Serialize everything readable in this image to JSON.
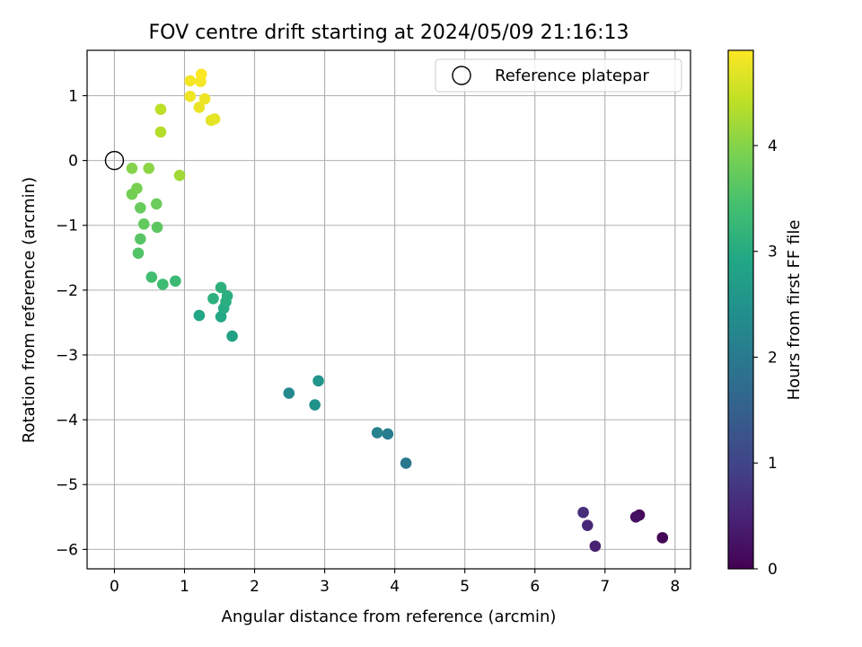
{
  "chart_data": {
    "type": "scatter",
    "title": "FOV centre drift starting at 2024/05/09 21:16:13",
    "xlabel": "Angular distance from reference (arcmin)",
    "ylabel": "Rotation from reference (arcmin)",
    "xlim": [
      -0.39,
      8.22
    ],
    "ylim": [
      -6.3,
      1.7
    ],
    "xticks": [
      0,
      1,
      2,
      3,
      4,
      5,
      6,
      7,
      8
    ],
    "xtick_labels": [
      "0",
      "1",
      "2",
      "3",
      "4",
      "5",
      "6",
      "7",
      "8"
    ],
    "yticks": [
      1,
      0,
      -1,
      -2,
      -3,
      -4,
      -5,
      -6
    ],
    "ytick_labels": [
      "1",
      "0",
      "−1",
      "−2",
      "−3",
      "−4",
      "−5",
      "−6"
    ],
    "grid": true,
    "legend": {
      "position": "top-right",
      "label": "Reference platepar",
      "marker": "open-circle"
    },
    "reference": {
      "x": 0,
      "y": 0
    },
    "colorbar": {
      "label": "Hours from first FF file",
      "colormap": "viridis",
      "range": [
        0,
        4.9
      ],
      "ticks": [
        0,
        1,
        2,
        3,
        4
      ],
      "tick_labels": [
        "0",
        "1",
        "2",
        "3",
        "4"
      ]
    },
    "points": [
      {
        "x": 7.82,
        "y": -5.82,
        "c": 0.05
      },
      {
        "x": 7.49,
        "y": -5.47,
        "c": 0.12
      },
      {
        "x": 7.44,
        "y": -5.5,
        "c": 0.22
      },
      {
        "x": 6.86,
        "y": -5.95,
        "c": 0.45
      },
      {
        "x": 6.75,
        "y": -5.63,
        "c": 0.55
      },
      {
        "x": 6.69,
        "y": -5.43,
        "c": 0.65
      },
      {
        "x": 4.16,
        "y": -4.67,
        "c": 1.95
      },
      {
        "x": 3.9,
        "y": -4.22,
        "c": 2.05
      },
      {
        "x": 3.75,
        "y": -4.2,
        "c": 2.15
      },
      {
        "x": 2.49,
        "y": -3.59,
        "c": 2.3
      },
      {
        "x": 2.86,
        "y": -3.77,
        "c": 2.45
      },
      {
        "x": 2.91,
        "y": -3.4,
        "c": 2.55
      },
      {
        "x": 1.68,
        "y": -2.71,
        "c": 2.8
      },
      {
        "x": 1.21,
        "y": -2.39,
        "c": 2.9
      },
      {
        "x": 1.52,
        "y": -2.41,
        "c": 2.95
      },
      {
        "x": 1.56,
        "y": -2.28,
        "c": 3.0
      },
      {
        "x": 1.59,
        "y": -2.18,
        "c": 3.05
      },
      {
        "x": 1.61,
        "y": -2.09,
        "c": 3.08
      },
      {
        "x": 1.41,
        "y": -2.13,
        "c": 3.1
      },
      {
        "x": 1.52,
        "y": -1.96,
        "c": 3.12
      },
      {
        "x": 0.87,
        "y": -1.86,
        "c": 3.3
      },
      {
        "x": 0.69,
        "y": -1.91,
        "c": 3.35
      },
      {
        "x": 0.53,
        "y": -1.8,
        "c": 3.4
      },
      {
        "x": 0.34,
        "y": -1.43,
        "c": 3.55
      },
      {
        "x": 0.37,
        "y": -1.21,
        "c": 3.6
      },
      {
        "x": 0.61,
        "y": -1.03,
        "c": 3.65
      },
      {
        "x": 0.42,
        "y": -0.98,
        "c": 3.7
      },
      {
        "x": 0.37,
        "y": -0.73,
        "c": 3.75
      },
      {
        "x": 0.6,
        "y": -0.67,
        "c": 3.78
      },
      {
        "x": 0.25,
        "y": -0.52,
        "c": 3.85
      },
      {
        "x": 0.32,
        "y": -0.43,
        "c": 3.9
      },
      {
        "x": 0.25,
        "y": -0.12,
        "c": 4.0
      },
      {
        "x": 0.49,
        "y": -0.12,
        "c": 4.05
      },
      {
        "x": 0.93,
        "y": -0.23,
        "c": 4.2
      },
      {
        "x": 0.66,
        "y": 0.44,
        "c": 4.35
      },
      {
        "x": 0.66,
        "y": 0.79,
        "c": 4.4
      },
      {
        "x": 1.38,
        "y": 0.62,
        "c": 4.7
      },
      {
        "x": 1.43,
        "y": 0.64,
        "c": 4.72
      },
      {
        "x": 1.21,
        "y": 0.82,
        "c": 4.75
      },
      {
        "x": 1.29,
        "y": 0.95,
        "c": 4.78
      },
      {
        "x": 1.08,
        "y": 0.99,
        "c": 4.8
      },
      {
        "x": 1.08,
        "y": 1.23,
        "c": 4.83
      },
      {
        "x": 1.23,
        "y": 1.22,
        "c": 4.85
      },
      {
        "x": 1.24,
        "y": 1.33,
        "c": 4.9
      }
    ]
  }
}
